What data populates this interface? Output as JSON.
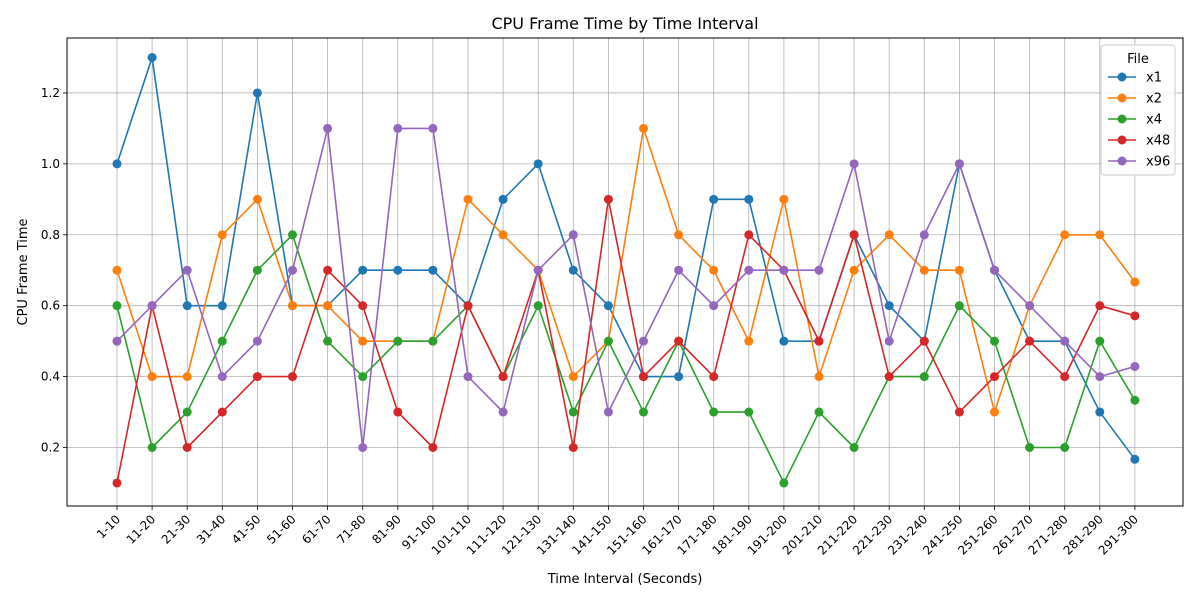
{
  "chart_data": {
    "type": "line",
    "title": "CPU Frame Time by Time Interval",
    "xlabel": "Time Interval (Seconds)",
    "ylabel": "CPU Frame Time",
    "ylim": [
      0.035,
      1.355
    ],
    "yticks": [
      0.2,
      0.4,
      0.6,
      0.8,
      1.0,
      1.2
    ],
    "ytick_labels": [
      "0.2",
      "0.4",
      "0.6",
      "0.8",
      "1.0",
      "1.2"
    ],
    "grid": true,
    "legend": {
      "title": "File",
      "placement": "top-right"
    },
    "categories": [
      "1-10",
      "11-20",
      "21-30",
      "31-40",
      "41-50",
      "51-60",
      "61-70",
      "71-80",
      "81-90",
      "91-100",
      "101-110",
      "111-120",
      "121-130",
      "131-140",
      "141-150",
      "151-160",
      "161-170",
      "171-180",
      "181-190",
      "191-200",
      "201-210",
      "211-220",
      "221-230",
      "231-240",
      "241-250",
      "251-260",
      "261-270",
      "271-280",
      "281-290",
      "291-300"
    ],
    "series": [
      {
        "name": "x1",
        "color": "#1f77b4",
        "values": [
          1.0,
          1.3,
          0.6,
          0.6,
          1.2,
          0.6,
          0.6,
          0.7,
          0.7,
          0.7,
          0.6,
          0.9,
          1.0,
          0.7,
          0.6,
          0.4,
          0.4,
          0.9,
          0.9,
          0.5,
          0.5,
          0.8,
          0.6,
          0.5,
          1.0,
          0.7,
          0.5,
          0.5,
          0.3,
          0.1667
        ]
      },
      {
        "name": "x2",
        "color": "#ff7f0e",
        "values": [
          0.7,
          0.4,
          0.4,
          0.8,
          0.9,
          0.6,
          0.6,
          0.5,
          0.5,
          0.5,
          0.9,
          0.8,
          0.7,
          0.4,
          0.5,
          1.1,
          0.8,
          0.7,
          0.5,
          0.9,
          0.4,
          0.7,
          0.8,
          0.7,
          0.7,
          0.3,
          0.6,
          0.8,
          0.8,
          0.6667
        ]
      },
      {
        "name": "x4",
        "color": "#2ca02c",
        "values": [
          0.6,
          0.2,
          0.3,
          0.5,
          0.7,
          0.8,
          0.5,
          0.4,
          0.5,
          0.5,
          0.6,
          0.4,
          0.6,
          0.3,
          0.5,
          0.3,
          0.5,
          0.3,
          0.3,
          0.1,
          0.3,
          0.2,
          0.4,
          0.4,
          0.6,
          0.5,
          0.2,
          0.2,
          0.5,
          0.3333
        ]
      },
      {
        "name": "x48",
        "color": "#d62728",
        "values": [
          0.1,
          0.6,
          0.2,
          0.3,
          0.4,
          0.4,
          0.7,
          0.6,
          0.3,
          0.2,
          0.6,
          0.4,
          0.7,
          0.2,
          0.9,
          0.4,
          0.5,
          0.4,
          0.8,
          0.7,
          0.5,
          0.8,
          0.4,
          0.5,
          0.3,
          0.4,
          0.5,
          0.4,
          0.6,
          0.5714
        ]
      },
      {
        "name": "x96",
        "color": "#9467bd",
        "values": [
          0.5,
          0.6,
          0.7,
          0.4,
          0.5,
          0.7,
          1.1,
          0.2,
          1.1,
          1.1,
          0.4,
          0.3,
          0.7,
          0.8,
          0.3,
          0.5,
          0.7,
          0.6,
          0.7,
          0.7,
          0.7,
          1.0,
          0.5,
          0.8,
          1.0,
          0.7,
          0.6,
          0.5,
          0.4,
          0.4286
        ]
      }
    ]
  }
}
